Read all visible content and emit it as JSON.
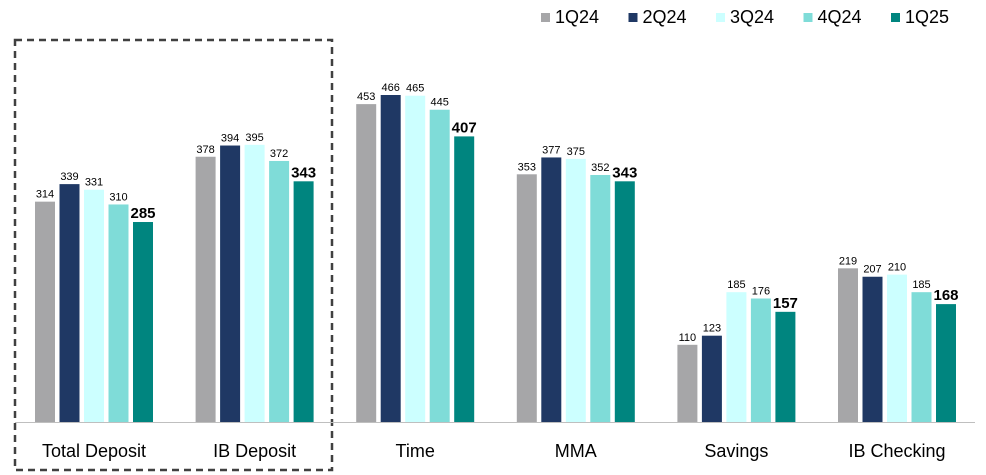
{
  "chart_data": {
    "type": "bar",
    "categories": [
      "Total Deposit",
      "IB Deposit",
      "Time",
      "MMA",
      "Savings",
      "IB Checking"
    ],
    "series": [
      {
        "name": "1Q24",
        "color": "#a6a6a8",
        "values": [
          314,
          378,
          453,
          353,
          110,
          219
        ]
      },
      {
        "name": "2Q24",
        "color": "#1f3864",
        "values": [
          339,
          394,
          466,
          377,
          123,
          207
        ]
      },
      {
        "name": "3Q24",
        "color": "#ccffff",
        "values": [
          331,
          395,
          465,
          375,
          185,
          210
        ]
      },
      {
        "name": "4Q24",
        "color": "#7fdcd8",
        "values": [
          310,
          372,
          445,
          352,
          176,
          185
        ]
      },
      {
        "name": "1Q25",
        "color": "#00857f",
        "values": [
          285,
          343,
          407,
          343,
          157,
          168
        ]
      }
    ],
    "legend": "top-right"
  }
}
